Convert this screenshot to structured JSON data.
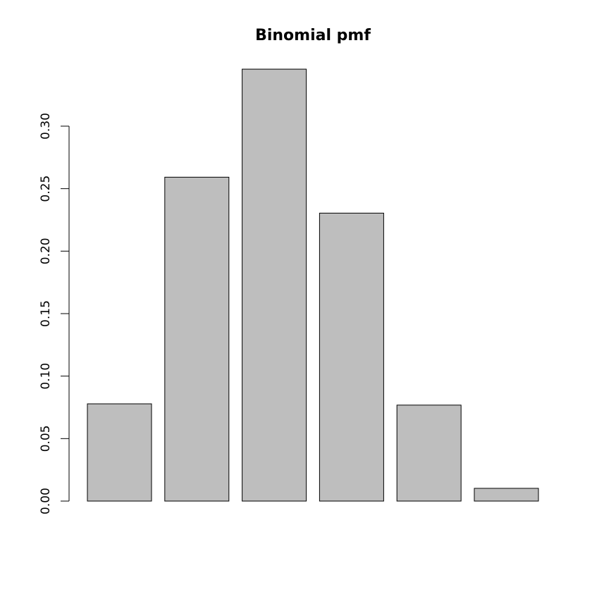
{
  "chart_data": {
    "type": "bar",
    "title": "Binomial pmf",
    "xlabel": "",
    "ylabel": "",
    "categories": [
      "",
      "",
      "",
      "",
      "",
      ""
    ],
    "values": [
      0.0778,
      0.2592,
      0.3456,
      0.2304,
      0.0768,
      0.0102
    ],
    "ylim": [
      0,
      0.35
    ],
    "yticks": [
      0.0,
      0.05,
      0.1,
      0.15,
      0.2,
      0.25,
      0.3
    ],
    "ytick_labels": [
      "0.00",
      "0.05",
      "0.10",
      "0.15",
      "0.20",
      "0.25",
      "0.30"
    ],
    "grid": false,
    "legend": "none",
    "bar_color": "#bebebe",
    "bar_border_color": "#000000"
  }
}
